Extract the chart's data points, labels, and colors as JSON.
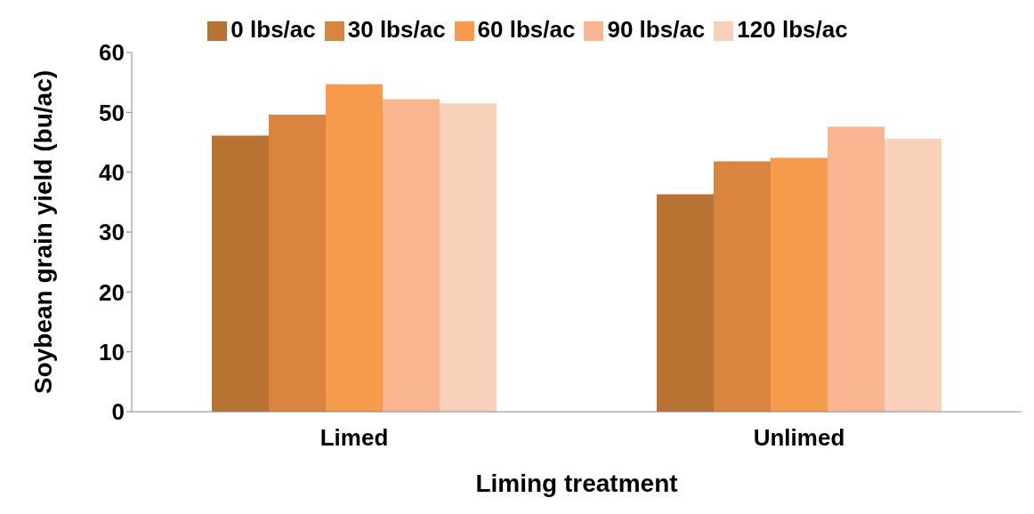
{
  "chart_data": {
    "type": "bar",
    "xlabel": "Liming treatment",
    "ylabel": "Soybean grain yield (bu/ac)",
    "categories": [
      "Limed",
      "Unlimed"
    ],
    "series": [
      {
        "name": "0 lbs/ac",
        "color": "#b87333",
        "values": [
          46.1,
          36.3
        ]
      },
      {
        "name": "30 lbs/ac",
        "color": "#d9843f",
        "values": [
          49.6,
          41.8
        ]
      },
      {
        "name": "60 lbs/ac",
        "color": "#f69a4c",
        "values": [
          54.7,
          42.4
        ]
      },
      {
        "name": "90 lbs/ac",
        "color": "#f8b58f",
        "values": [
          52.2,
          47.6
        ]
      },
      {
        "name": "120 lbs/ac",
        "color": "#f9d0ba",
        "values": [
          51.5,
          45.6
        ]
      }
    ],
    "ylim": [
      0,
      60
    ],
    "yticks": [
      0,
      10,
      20,
      30,
      40,
      50,
      60
    ],
    "grid": false,
    "legend": "top"
  }
}
